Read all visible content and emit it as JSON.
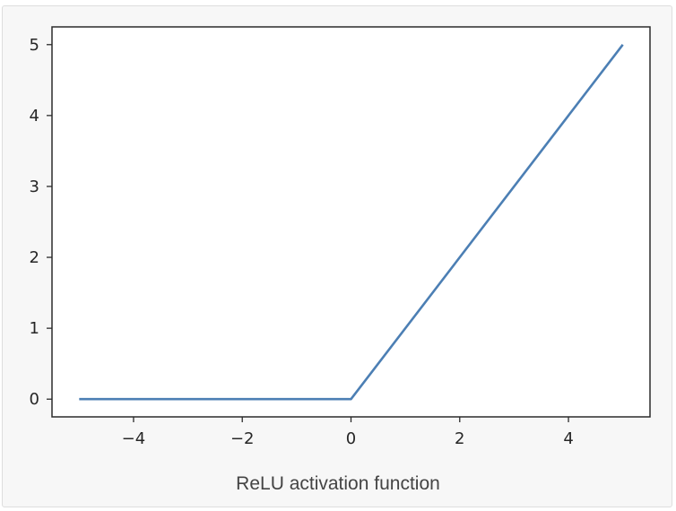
{
  "caption": "ReLU activation function",
  "colors": {
    "line": "#4c7fb4",
    "axes": "#2b2b2b",
    "plot_background": "#ffffff",
    "card_background": "#f7f7f7"
  },
  "chart_data": {
    "type": "line",
    "title": "",
    "xlabel": "",
    "ylabel": "",
    "xlim": [
      -5.5,
      5.5
    ],
    "ylim": [
      -0.25,
      5.25
    ],
    "grid": false,
    "x_ticks": [
      -4,
      -2,
      0,
      2,
      4
    ],
    "x_tick_labels": [
      "−4",
      "−2",
      "0",
      "2",
      "4"
    ],
    "y_ticks": [
      0,
      1,
      2,
      3,
      4,
      5
    ],
    "y_tick_labels": [
      "0",
      "1",
      "2",
      "3",
      "4",
      "5"
    ],
    "series": [
      {
        "x": [
          -5,
          0,
          5
        ],
        "y": [
          0,
          0,
          5
        ]
      }
    ]
  }
}
